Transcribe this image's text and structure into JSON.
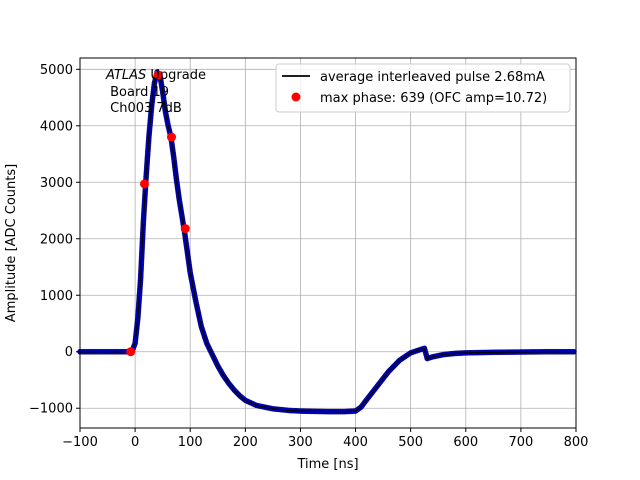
{
  "chart_data": {
    "type": "scatter",
    "xlabel": "Time [ns]",
    "ylabel": "Amplitude [ADC Counts]",
    "xlim": [
      -100,
      800
    ],
    "ylim": [
      -1350,
      5200
    ],
    "xticks": [
      -100,
      0,
      100,
      200,
      300,
      400,
      500,
      600,
      700,
      800
    ],
    "yticks": [
      -1000,
      0,
      1000,
      2000,
      3000,
      4000,
      5000
    ],
    "grid": true,
    "legend_position": "top-right",
    "annotation": {
      "line1_italic": "ATLAS",
      "line1_rest": " Upgrade",
      "line2": " Board 19",
      "line3": " Ch003 7dB"
    },
    "colors": {
      "average": "#000000",
      "samples": "#0000cd",
      "samples_edge": "#000066",
      "max_phase": "#ff0000"
    },
    "series": [
      {
        "name": "average interleaved pulse 2.68mA",
        "kind": "line",
        "x": [
          -100,
          -10,
          -5,
          0,
          5,
          10,
          15,
          20,
          25,
          30,
          35,
          40,
          45,
          50,
          55,
          60,
          65,
          70,
          75,
          80,
          85,
          90,
          95,
          100,
          110,
          120,
          130,
          140,
          145,
          150,
          160,
          170,
          180,
          190,
          200,
          220,
          250,
          280,
          300,
          320,
          350,
          380,
          400,
          410,
          420,
          440,
          460,
          480,
          500,
          515,
          525,
          530,
          540,
          550,
          560,
          580,
          600,
          650,
          700,
          750,
          800
        ],
        "y": [
          0,
          0,
          20,
          150,
          600,
          1300,
          2300,
          3100,
          3800,
          4350,
          4750,
          4950,
          4900,
          4600,
          4250,
          4000,
          3800,
          3450,
          3050,
          2700,
          2400,
          2100,
          1750,
          1400,
          900,
          450,
          150,
          -50,
          -150,
          -250,
          -420,
          -560,
          -680,
          -780,
          -860,
          -950,
          -1010,
          -1040,
          -1050,
          -1055,
          -1060,
          -1060,
          -1050,
          -980,
          -850,
          -600,
          -350,
          -150,
          -20,
          30,
          60,
          -120,
          -90,
          -70,
          -50,
          -30,
          -20,
          -10,
          -5,
          0,
          0
        ]
      },
      {
        "name": "",
        "kind": "samples",
        "x": [
          -100,
          -10,
          -5,
          0,
          5,
          10,
          15,
          20,
          25,
          30,
          35,
          40,
          45,
          50,
          55,
          60,
          65,
          70,
          75,
          80,
          85,
          90,
          95,
          100,
          110,
          120,
          130,
          140,
          145,
          150,
          160,
          170,
          180,
          190,
          200,
          220,
          250,
          280,
          300,
          320,
          350,
          380,
          400,
          410,
          420,
          440,
          460,
          480,
          500,
          515,
          525,
          530,
          540,
          550,
          560,
          580,
          600,
          650,
          700,
          750,
          800
        ],
        "y": [
          0,
          0,
          20,
          150,
          600,
          1300,
          2300,
          3100,
          3800,
          4350,
          4750,
          4950,
          4900,
          4600,
          4250,
          4000,
          3800,
          3450,
          3050,
          2700,
          2400,
          2100,
          1750,
          1400,
          900,
          450,
          150,
          -50,
          -150,
          -250,
          -420,
          -560,
          -680,
          -780,
          -860,
          -950,
          -1010,
          -1040,
          -1050,
          -1055,
          -1060,
          -1060,
          -1050,
          -980,
          -850,
          -600,
          -350,
          -150,
          -20,
          30,
          60,
          -120,
          -90,
          -70,
          -50,
          -30,
          -20,
          -10,
          -5,
          0,
          0
        ]
      },
      {
        "name": "max phase: 639 (OFC amp=10.72)",
        "kind": "points",
        "x": [
          -8,
          17,
          42,
          66,
          91
        ],
        "y": [
          0,
          2970,
          4900,
          3800,
          2180
        ]
      }
    ]
  }
}
